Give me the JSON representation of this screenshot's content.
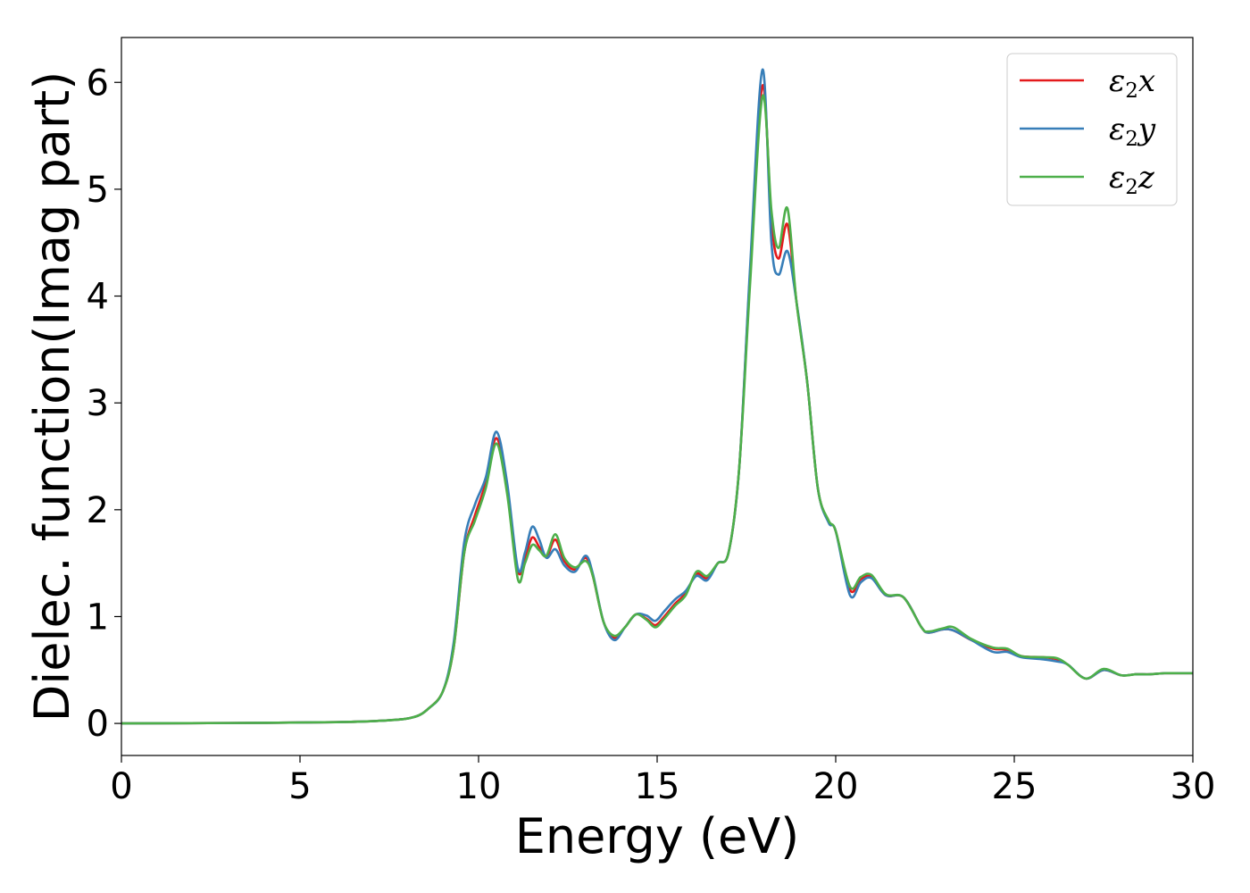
{
  "chart_data": {
    "type": "line",
    "title": "",
    "xlabel": "Energy (eV)",
    "ylabel": "Dielec. function(Imag part)",
    "xlim": [
      0,
      30
    ],
    "ylim": [
      -0.3,
      6.42
    ],
    "xticks": [
      0,
      5,
      10,
      15,
      20,
      25,
      30
    ],
    "yticks": [
      0,
      1,
      2,
      3,
      4,
      5,
      6
    ],
    "grid": false,
    "legend_position": "top-right",
    "series": [
      {
        "name": "ε₂x",
        "legend_base": "ε",
        "legend_sub": "2",
        "legend_var": "x",
        "color": "#e41a1c",
        "points": [
          [
            0,
            0
          ],
          [
            3,
            0.004
          ],
          [
            6,
            0.012
          ],
          [
            7.5,
            0.03
          ],
          [
            8.2,
            0.06
          ],
          [
            8.6,
            0.14
          ],
          [
            9.0,
            0.3
          ],
          [
            9.3,
            0.7
          ],
          [
            9.6,
            1.6
          ],
          [
            9.9,
            1.95
          ],
          [
            10.2,
            2.25
          ],
          [
            10.5,
            2.67
          ],
          [
            10.8,
            2.2
          ],
          [
            11.1,
            1.43
          ],
          [
            11.3,
            1.55
          ],
          [
            11.5,
            1.74
          ],
          [
            11.7,
            1.65
          ],
          [
            11.9,
            1.56
          ],
          [
            12.15,
            1.72
          ],
          [
            12.4,
            1.52
          ],
          [
            12.7,
            1.44
          ],
          [
            13.0,
            1.55
          ],
          [
            13.2,
            1.38
          ],
          [
            13.5,
            0.95
          ],
          [
            13.8,
            0.8
          ],
          [
            14.1,
            0.9
          ],
          [
            14.4,
            1.02
          ],
          [
            14.7,
            0.98
          ],
          [
            14.95,
            0.92
          ],
          [
            15.2,
            1.0
          ],
          [
            15.5,
            1.12
          ],
          [
            15.8,
            1.22
          ],
          [
            16.1,
            1.4
          ],
          [
            16.4,
            1.36
          ],
          [
            16.7,
            1.5
          ],
          [
            17.0,
            1.6
          ],
          [
            17.3,
            2.4
          ],
          [
            17.6,
            4.2
          ],
          [
            17.95,
            5.97
          ],
          [
            18.2,
            4.7
          ],
          [
            18.4,
            4.35
          ],
          [
            18.65,
            4.67
          ],
          [
            18.9,
            3.95
          ],
          [
            19.2,
            3.2
          ],
          [
            19.5,
            2.2
          ],
          [
            19.8,
            1.89
          ],
          [
            20.0,
            1.8
          ],
          [
            20.4,
            1.25
          ],
          [
            20.7,
            1.35
          ],
          [
            21.0,
            1.37
          ],
          [
            21.4,
            1.2
          ],
          [
            21.9,
            1.18
          ],
          [
            22.4,
            0.9
          ],
          [
            22.6,
            0.85
          ],
          [
            23.0,
            0.88
          ],
          [
            23.3,
            0.87
          ],
          [
            23.8,
            0.78
          ],
          [
            24.4,
            0.7
          ],
          [
            24.8,
            0.69
          ],
          [
            25.2,
            0.63
          ],
          [
            25.8,
            0.62
          ],
          [
            26.2,
            0.6
          ],
          [
            26.5,
            0.55
          ],
          [
            27.0,
            0.42
          ],
          [
            27.5,
            0.5
          ],
          [
            28.0,
            0.45
          ],
          [
            28.4,
            0.46
          ],
          [
            28.8,
            0.46
          ],
          [
            29.2,
            0.47
          ],
          [
            29.6,
            0.47
          ],
          [
            30.0,
            0.47
          ]
        ]
      },
      {
        "name": "ε₂y",
        "legend_base": "ε",
        "legend_sub": "2",
        "legend_var": "y",
        "color": "#377eb8",
        "points": [
          [
            0,
            0
          ],
          [
            3,
            0.004
          ],
          [
            6,
            0.012
          ],
          [
            7.5,
            0.03
          ],
          [
            8.2,
            0.06
          ],
          [
            8.6,
            0.14
          ],
          [
            9.0,
            0.3
          ],
          [
            9.3,
            0.75
          ],
          [
            9.6,
            1.7
          ],
          [
            9.9,
            2.05
          ],
          [
            10.2,
            2.3
          ],
          [
            10.5,
            2.73
          ],
          [
            10.8,
            2.25
          ],
          [
            11.1,
            1.45
          ],
          [
            11.3,
            1.6
          ],
          [
            11.5,
            1.84
          ],
          [
            11.7,
            1.72
          ],
          [
            11.9,
            1.55
          ],
          [
            12.15,
            1.63
          ],
          [
            12.4,
            1.48
          ],
          [
            12.7,
            1.42
          ],
          [
            13.0,
            1.57
          ],
          [
            13.2,
            1.4
          ],
          [
            13.5,
            0.95
          ],
          [
            13.8,
            0.78
          ],
          [
            14.1,
            0.9
          ],
          [
            14.4,
            1.02
          ],
          [
            14.7,
            1.01
          ],
          [
            14.95,
            0.96
          ],
          [
            15.2,
            1.05
          ],
          [
            15.5,
            1.16
          ],
          [
            15.8,
            1.24
          ],
          [
            16.1,
            1.38
          ],
          [
            16.4,
            1.34
          ],
          [
            16.7,
            1.5
          ],
          [
            17.0,
            1.6
          ],
          [
            17.3,
            2.4
          ],
          [
            17.6,
            4.25
          ],
          [
            17.95,
            6.12
          ],
          [
            18.2,
            4.5
          ],
          [
            18.4,
            4.2
          ],
          [
            18.65,
            4.42
          ],
          [
            18.9,
            3.95
          ],
          [
            19.2,
            3.2
          ],
          [
            19.5,
            2.2
          ],
          [
            19.8,
            1.88
          ],
          [
            20.0,
            1.8
          ],
          [
            20.4,
            1.2
          ],
          [
            20.7,
            1.32
          ],
          [
            21.0,
            1.36
          ],
          [
            21.4,
            1.2
          ],
          [
            21.9,
            1.18
          ],
          [
            22.4,
            0.9
          ],
          [
            22.6,
            0.85
          ],
          [
            23.0,
            0.88
          ],
          [
            23.3,
            0.87
          ],
          [
            23.8,
            0.78
          ],
          [
            24.4,
            0.67
          ],
          [
            24.8,
            0.67
          ],
          [
            25.2,
            0.62
          ],
          [
            25.8,
            0.6
          ],
          [
            26.2,
            0.58
          ],
          [
            26.5,
            0.55
          ],
          [
            27.0,
            0.42
          ],
          [
            27.5,
            0.5
          ],
          [
            28.0,
            0.45
          ],
          [
            28.4,
            0.46
          ],
          [
            28.8,
            0.46
          ],
          [
            29.2,
            0.47
          ],
          [
            29.6,
            0.47
          ],
          [
            30.0,
            0.47
          ]
        ]
      },
      {
        "name": "ε₂z",
        "legend_base": "ε",
        "legend_sub": "2",
        "legend_var": "z",
        "color": "#4daf4a",
        "points": [
          [
            0,
            0
          ],
          [
            3,
            0.004
          ],
          [
            6,
            0.012
          ],
          [
            7.5,
            0.03
          ],
          [
            8.2,
            0.06
          ],
          [
            8.6,
            0.14
          ],
          [
            9.0,
            0.3
          ],
          [
            9.3,
            0.7
          ],
          [
            9.6,
            1.6
          ],
          [
            9.9,
            1.9
          ],
          [
            10.2,
            2.2
          ],
          [
            10.5,
            2.62
          ],
          [
            10.8,
            2.15
          ],
          [
            11.1,
            1.35
          ],
          [
            11.3,
            1.5
          ],
          [
            11.5,
            1.67
          ],
          [
            11.7,
            1.62
          ],
          [
            11.9,
            1.57
          ],
          [
            12.15,
            1.77
          ],
          [
            12.4,
            1.55
          ],
          [
            12.7,
            1.46
          ],
          [
            13.0,
            1.52
          ],
          [
            13.2,
            1.38
          ],
          [
            13.5,
            0.95
          ],
          [
            13.8,
            0.82
          ],
          [
            14.1,
            0.9
          ],
          [
            14.4,
            1.02
          ],
          [
            14.7,
            0.97
          ],
          [
            14.95,
            0.9
          ],
          [
            15.2,
            0.98
          ],
          [
            15.5,
            1.1
          ],
          [
            15.8,
            1.2
          ],
          [
            16.1,
            1.42
          ],
          [
            16.4,
            1.38
          ],
          [
            16.7,
            1.5
          ],
          [
            17.0,
            1.6
          ],
          [
            17.3,
            2.4
          ],
          [
            17.6,
            4.1
          ],
          [
            17.95,
            5.87
          ],
          [
            18.2,
            4.8
          ],
          [
            18.4,
            4.45
          ],
          [
            18.65,
            4.82
          ],
          [
            18.9,
            3.95
          ],
          [
            19.2,
            3.2
          ],
          [
            19.5,
            2.2
          ],
          [
            19.8,
            1.9
          ],
          [
            20.0,
            1.8
          ],
          [
            20.4,
            1.28
          ],
          [
            20.7,
            1.37
          ],
          [
            21.0,
            1.39
          ],
          [
            21.4,
            1.21
          ],
          [
            21.9,
            1.18
          ],
          [
            22.4,
            0.9
          ],
          [
            22.6,
            0.86
          ],
          [
            23.0,
            0.89
          ],
          [
            23.3,
            0.9
          ],
          [
            23.8,
            0.79
          ],
          [
            24.4,
            0.71
          ],
          [
            24.8,
            0.7
          ],
          [
            25.2,
            0.63
          ],
          [
            25.8,
            0.62
          ],
          [
            26.2,
            0.61
          ],
          [
            26.5,
            0.55
          ],
          [
            27.0,
            0.42
          ],
          [
            27.5,
            0.51
          ],
          [
            28.0,
            0.45
          ],
          [
            28.4,
            0.46
          ],
          [
            28.8,
            0.46
          ],
          [
            29.2,
            0.47
          ],
          [
            29.6,
            0.47
          ],
          [
            30.0,
            0.47
          ]
        ]
      }
    ]
  }
}
